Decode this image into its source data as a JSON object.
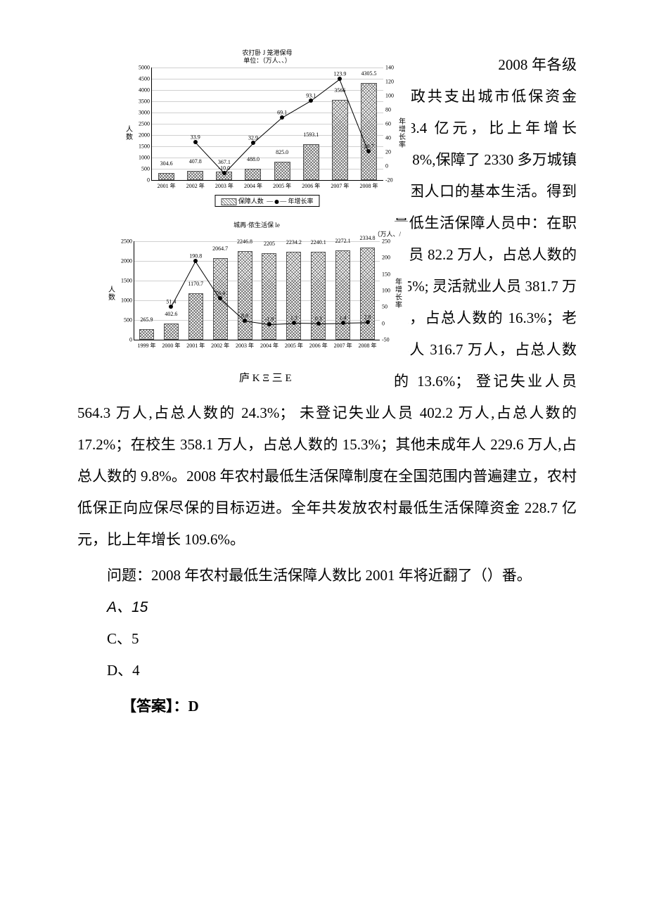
{
  "chart1": {
    "type": "bar-line",
    "title_line1": "农打卧 J 笼港保母",
    "title_line2": "单位：（万人、、）",
    "left_axis_label": "人数",
    "right_axis_label": "年增长率",
    "categories": [
      "2001 年",
      "2002 年",
      "2003 年",
      "2004 年",
      "2005 年",
      "2006 年",
      "2007 年",
      "2008 年"
    ],
    "bar_values": [
      304.6,
      407.8,
      367.1,
      488.0,
      825.0,
      1593.1,
      3566,
      4305.5
    ],
    "bar_labels": [
      "304.6",
      "407.8",
      "367.1",
      "488.0",
      "825.0",
      "1593.1",
      "3566",
      "4305.5"
    ],
    "line_values": [
      null,
      33.9,
      -10.0,
      32.9,
      69.1,
      93.1,
      123.9,
      20.7
    ],
    "line_labels": [
      "",
      "33.9",
      "-10.0",
      "32.9",
      "69.1",
      "93.1",
      "123.9",
      "20.7"
    ],
    "y_left_ticks": [
      0,
      500,
      1000,
      1500,
      2000,
      2500,
      3000,
      3500,
      4000,
      4500,
      5000
    ],
    "y_left_max": 5000,
    "y_right_ticks": [
      -20,
      0,
      20,
      40,
      60,
      80,
      100,
      120,
      140
    ],
    "y_right_min": -20,
    "y_right_max": 140,
    "legend_bar": "保障人数",
    "legend_line": "年增长率",
    "bar_width_pct": 7,
    "colors": {
      "bar_border": "#555",
      "grid": "#d0d0d0",
      "line": "#000",
      "bg": "#ffffff"
    }
  },
  "chart2": {
    "type": "bar-line",
    "title": "城再·侬生活保 le",
    "unit_right": "（万人、/",
    "left_axis_label": "人数",
    "right_axis_label": "年增长率",
    "categories": [
      "1999 年",
      "2000 年",
      "2001 年",
      "2002 年",
      "2003 年",
      "2004 年",
      "2005 年",
      "2006 年",
      "2007 年",
      "2008 年"
    ],
    "bar_values": [
      265.9,
      402.6,
      1170.7,
      2064.7,
      2246.8,
      2205,
      2234.2,
      2240.1,
      2272.1,
      2334.8
    ],
    "bar_labels": [
      "265.9",
      "402.6",
      "1170.7",
      "2064.7",
      "2246.8",
      "2205",
      "2234.2",
      "2240.1",
      "2272.1",
      "2334.8"
    ],
    "line_values": [
      null,
      51.4,
      190.8,
      76.4,
      8.8,
      -1.9,
      1.3,
      0.3,
      1.4,
      2.8
    ],
    "line_labels": [
      "",
      "51.4",
      "190.8",
      "76.4",
      "8.8",
      "-1.9",
      "1.3",
      "0.3",
      "1.4",
      "2.8"
    ],
    "y_left_ticks": [
      0,
      500,
      1000,
      1500,
      2000,
      2500
    ],
    "y_left_max": 2500,
    "y_right_ticks": [
      -50,
      0,
      50,
      100,
      150,
      200,
      250
    ],
    "y_right_min": -50,
    "y_right_max": 250,
    "bar_width_pct": 6,
    "colors": {
      "bar_border": "#555",
      "grid": "#d0d0d0",
      "line": "#000",
      "bg": "#ffffff"
    }
  },
  "under_note": "庐 K Ξ  三 E",
  "para_lead": "2008 年各级财政共支出城",
  "para_rest": "市低保资金 393.4 亿元，比上年增长 41.8%,保障了 2330 多万城镇贫困人口的基本生活。得到最低生活保障人员中：在职人员 82.2 万人，占总人数的 3.5%; 灵活就业人员 381.7 万人，占总人数的 16.3%；老年人 316.7 万人，占总人数的 13.6%； 登记失业人员 564.3 万人,占总人数的 24.3%； 未登记失业人员 402.2 万人,占总人数的 17.2%；在校生 358.1 万人，占总人数的 15.3%；其他未成年人 229.6 万人,占总人数的 9.8%。2008 年农村最低生活保障制度在全国范围内普遍建立，农村低保正向应保尽保的目标迈进。全年共发放农村最低生活保障资金 228.7 亿元，比上年增长 109.6%。",
  "question": "问题：2008 年农村最低生活保障人数比 2001 年将近翻了（）番。",
  "options": {
    "A": "A、15",
    "C": "C、5",
    "D": "D、4"
  },
  "answer_label": "【答案】：",
  "answer_value": "D"
}
